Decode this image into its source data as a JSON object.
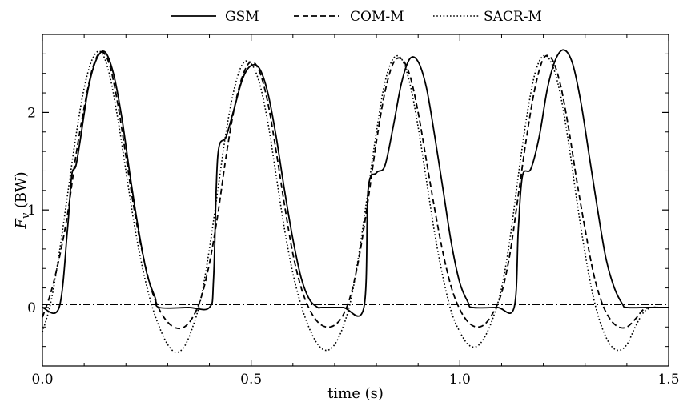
{
  "chart_data": {
    "type": "line",
    "xlabel": "time (s)",
    "ylabel_main": "F",
    "ylabel_sub": "v",
    "ylabel_unit": " (BW)",
    "xlim": [
      0.0,
      1.5
    ],
    "ylim": [
      -0.6,
      2.8
    ],
    "xticks": [
      0.0,
      0.5,
      1.0,
      1.5
    ],
    "xtick_labels": [
      "0.0",
      "0.5",
      "1.0",
      "1.5"
    ],
    "yticks": [
      0,
      1,
      2
    ],
    "ytick_labels": [
      "0",
      "1",
      "2"
    ],
    "grid": false,
    "legend_position": "top-center",
    "reference_line": {
      "y": 0.03,
      "style": "dashdot"
    },
    "series": [
      {
        "name": "GSM",
        "style": "solid",
        "x": [
          0.0,
          0.04,
          0.06,
          0.07,
          0.08,
          0.09,
          0.11,
          0.13,
          0.15,
          0.17,
          0.19,
          0.21,
          0.23,
          0.25,
          0.27,
          0.28,
          0.35,
          0.4,
          0.41,
          0.42,
          0.44,
          0.46,
          0.48,
          0.5,
          0.52,
          0.54,
          0.56,
          0.58,
          0.6,
          0.62,
          0.64,
          0.66,
          0.67,
          0.72,
          0.77,
          0.78,
          0.8,
          0.82,
          0.84,
          0.86,
          0.88,
          0.9,
          0.92,
          0.94,
          0.96,
          0.98,
          1.0,
          1.02,
          1.03,
          1.09,
          1.13,
          1.14,
          1.15,
          1.17,
          1.19,
          1.21,
          1.23,
          1.25,
          1.27,
          1.29,
          1.31,
          1.33,
          1.35,
          1.37,
          1.39,
          1.4,
          1.45,
          1.5
        ],
        "values": [
          0.0,
          0.0,
          0.8,
          1.35,
          1.45,
          1.7,
          2.25,
          2.55,
          2.62,
          2.4,
          1.95,
          1.35,
          0.8,
          0.35,
          0.1,
          0.0,
          0.0,
          0.0,
          0.3,
          1.55,
          1.75,
          2.05,
          2.35,
          2.48,
          2.45,
          2.2,
          1.75,
          1.2,
          0.7,
          0.3,
          0.08,
          0.0,
          0.0,
          0.0,
          0.0,
          1.2,
          1.38,
          1.45,
          1.85,
          2.3,
          2.55,
          2.52,
          2.25,
          1.75,
          1.2,
          0.65,
          0.25,
          0.05,
          0.0,
          0.0,
          0.0,
          0.8,
          1.35,
          1.42,
          1.75,
          2.25,
          2.55,
          2.64,
          2.5,
          2.1,
          1.55,
          1.0,
          0.5,
          0.2,
          0.03,
          0.0,
          0.0,
          0.0
        ]
      },
      {
        "name": "COM-M",
        "style": "dashed",
        "x": [
          0.0,
          0.02,
          0.04,
          0.06,
          0.08,
          0.1,
          0.12,
          0.14,
          0.16,
          0.18,
          0.2,
          0.22,
          0.24,
          0.26,
          0.28,
          0.3,
          0.32,
          0.34,
          0.36,
          0.38,
          0.4,
          0.42,
          0.44,
          0.46,
          0.48,
          0.5,
          0.52,
          0.54,
          0.56,
          0.58,
          0.6,
          0.62,
          0.64,
          0.66,
          0.68,
          0.7,
          0.72,
          0.74,
          0.76,
          0.78,
          0.8,
          0.82,
          0.84,
          0.86,
          0.88,
          0.9,
          0.92,
          0.94,
          0.96,
          0.98,
          1.0,
          1.02,
          1.04,
          1.06,
          1.08,
          1.1,
          1.12,
          1.14,
          1.16,
          1.18,
          1.2,
          1.22,
          1.24,
          1.26,
          1.28,
          1.3,
          1.32,
          1.34,
          1.36,
          1.38,
          1.4,
          1.42,
          1.44,
          1.46,
          1.48,
          1.5
        ],
        "values": [
          -0.1,
          0.15,
          0.5,
          0.95,
          1.55,
          2.05,
          2.45,
          2.62,
          2.5,
          2.1,
          1.55,
          1.0,
          0.55,
          0.2,
          -0.02,
          -0.15,
          -0.21,
          -0.2,
          -0.1,
          0.1,
          0.45,
          0.95,
          1.55,
          2.05,
          2.38,
          2.52,
          2.42,
          2.1,
          1.6,
          1.05,
          0.55,
          0.2,
          -0.02,
          -0.15,
          -0.2,
          -0.18,
          -0.08,
          0.15,
          0.55,
          1.1,
          1.7,
          2.2,
          2.5,
          2.55,
          2.38,
          2.0,
          1.5,
          1.0,
          0.55,
          0.2,
          -0.02,
          -0.15,
          -0.2,
          -0.17,
          -0.05,
          0.15,
          0.55,
          1.15,
          1.75,
          2.25,
          2.55,
          2.55,
          2.3,
          1.85,
          1.3,
          0.8,
          0.35,
          0.05,
          -0.12,
          -0.2,
          -0.2,
          -0.12,
          -0.02,
          0.0,
          0.0,
          0.0
        ]
      },
      {
        "name": "SACR-M",
        "style": "dotted",
        "x": [
          0.0,
          0.02,
          0.04,
          0.06,
          0.08,
          0.1,
          0.12,
          0.14,
          0.16,
          0.18,
          0.2,
          0.22,
          0.24,
          0.26,
          0.28,
          0.3,
          0.32,
          0.34,
          0.36,
          0.38,
          0.4,
          0.42,
          0.44,
          0.46,
          0.48,
          0.5,
          0.52,
          0.54,
          0.56,
          0.58,
          0.6,
          0.62,
          0.64,
          0.66,
          0.68,
          0.7,
          0.72,
          0.74,
          0.76,
          0.78,
          0.8,
          0.82,
          0.84,
          0.86,
          0.88,
          0.9,
          0.92,
          0.94,
          0.96,
          0.98,
          1.0,
          1.02,
          1.04,
          1.06,
          1.08,
          1.1,
          1.12,
          1.14,
          1.16,
          1.18,
          1.2,
          1.22,
          1.24,
          1.26,
          1.28,
          1.3,
          1.32,
          1.34,
          1.36,
          1.38,
          1.4,
          1.42,
          1.44,
          1.46,
          1.48,
          1.5
        ],
        "values": [
          -0.25,
          0.05,
          0.55,
          1.15,
          1.75,
          2.25,
          2.55,
          2.62,
          2.4,
          1.95,
          1.4,
          0.85,
          0.4,
          0.05,
          -0.2,
          -0.38,
          -0.46,
          -0.4,
          -0.2,
          0.1,
          0.6,
          1.2,
          1.8,
          2.25,
          2.5,
          2.5,
          2.3,
          1.9,
          1.35,
          0.8,
          0.35,
          0.02,
          -0.22,
          -0.38,
          -0.44,
          -0.38,
          -0.2,
          0.1,
          0.6,
          1.2,
          1.8,
          2.3,
          2.55,
          2.55,
          2.3,
          1.85,
          1.3,
          0.75,
          0.3,
          -0.05,
          -0.25,
          -0.38,
          -0.4,
          -0.3,
          -0.1,
          0.2,
          0.7,
          1.35,
          1.95,
          2.4,
          2.58,
          2.5,
          2.2,
          1.7,
          1.1,
          0.55,
          0.1,
          -0.2,
          -0.38,
          -0.44,
          -0.38,
          -0.2,
          -0.05,
          0.0,
          0.0,
          0.0
        ]
      }
    ]
  }
}
